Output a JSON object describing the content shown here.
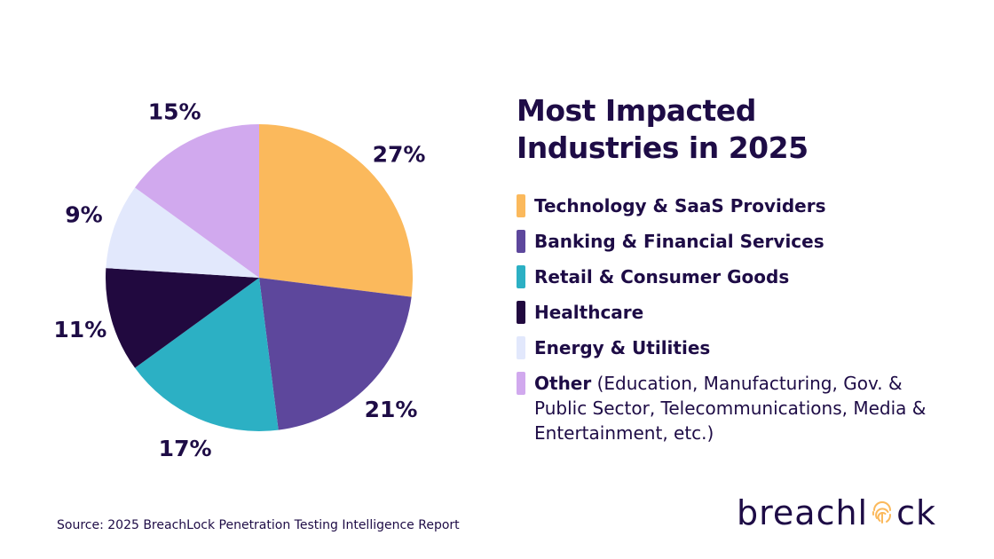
{
  "title": "Most Impacted Industries in 2025",
  "chart_data": {
    "type": "pie",
    "title": "Most Impacted Industries in 2025",
    "slices": [
      {
        "label": "Technology & SaaS Providers",
        "value": 27,
        "value_label": "27%",
        "color": "#fbb95c"
      },
      {
        "label": "Banking & Financial Services",
        "value": 21,
        "value_label": "21%",
        "color": "#5d479c"
      },
      {
        "label": "Retail & Consumer Goods",
        "value": 17,
        "value_label": "17%",
        "color": "#2cb0c4"
      },
      {
        "label": "Healthcare",
        "value": 11,
        "value_label": "11%",
        "color": "#21093f"
      },
      {
        "label": "Energy & Utilities",
        "value": 9,
        "value_label": "9%",
        "color": "#e2e8fc"
      },
      {
        "label": "Other",
        "detail": "(Education, Manufacturing, Gov. & Public Sector, Telecommunications, Media & Entertainment, etc.)",
        "value": 15,
        "value_label": "15%",
        "color": "#d1a9ee"
      }
    ],
    "legend_position": "right"
  },
  "source": "Source: 2025 BreachLock Penetration Testing Intelligence Report",
  "brand": {
    "name": "breachlock",
    "text_before": "breachl",
    "text_after": "ck",
    "logo_icon": "fingerprint-icon"
  }
}
